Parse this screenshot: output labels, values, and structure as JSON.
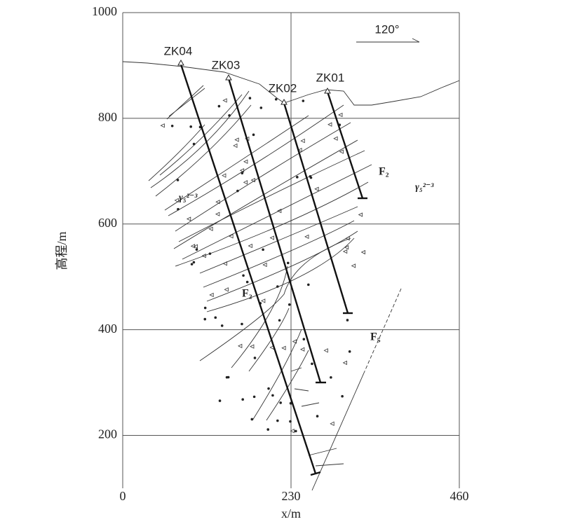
{
  "chart_data": {
    "type": "section",
    "x_label": "x/m",
    "y_label": "高程/m",
    "xlim": [
      0,
      460
    ],
    "xticks": [
      0,
      230,
      460
    ],
    "ylim": [
      100,
      1000
    ],
    "yticks": [
      200,
      400,
      600,
      800,
      1000
    ],
    "grid": true,
    "annotations": {
      "direction": "120°",
      "drillholes": [
        "ZK04",
        "ZK03",
        "ZK02",
        "ZK01"
      ],
      "fault_f2_right": "F₂",
      "fault_f2_left": "F₂",
      "fault_f5": "F₅",
      "rock_left": "γ₅²⁻³",
      "rock_right": "γ₅²⁻³"
    }
  }
}
